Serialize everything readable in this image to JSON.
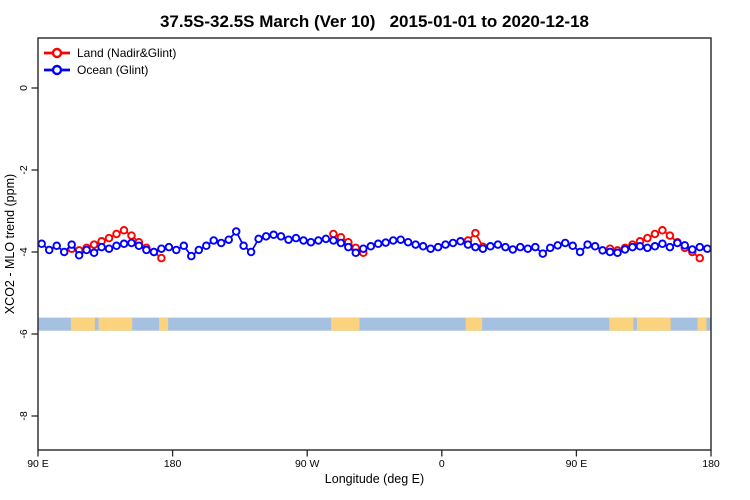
{
  "page": {
    "background": "#ffffff"
  },
  "legend": {
    "position": "top-left-inside",
    "items": [
      {
        "label": "Land (Nadir&Glint)",
        "color": "#ff0000",
        "marker": "open-circle-on-line"
      },
      {
        "label": "Ocean (Glint)",
        "color": "#0000ff",
        "marker": "open-circle-on-line"
      }
    ]
  },
  "chart_data": {
    "type": "line",
    "title": "37.5S-32.5S March (Ver 10)   2015-01-01 to 2020-12-18",
    "xlabel": "Longitude (deg E)",
    "ylabel": "XCO2 - MLO trend (ppm)",
    "xlim": [
      90,
      540
    ],
    "ylim": [
      -8.8,
      1.2
    ],
    "grid": false,
    "frame": true,
    "legend_position": "top-left-inside",
    "xticks": [
      {
        "value": 90,
        "label": "90 E"
      },
      {
        "value": 180,
        "label": "180"
      },
      {
        "value": 270,
        "label": "90 W"
      },
      {
        "value": 360,
        "label": "0"
      },
      {
        "value": 450,
        "label": "90 E"
      },
      {
        "value": 540,
        "label": "180"
      }
    ],
    "yticks": [
      {
        "value": 0,
        "label": "0"
      },
      {
        "value": -2,
        "label": "-2"
      },
      {
        "value": -4,
        "label": "-4"
      },
      {
        "value": -6,
        "label": "-6"
      },
      {
        "value": -8,
        "label": "-8"
      }
    ],
    "series": [
      {
        "name": "Land (Nadir&Glint)",
        "color": "#ff0000",
        "marker": "open-circle",
        "segments": [
          {
            "x": [
              112.5,
              117.5,
              122.5,
              127.5,
              132.5,
              137.5,
              142.5,
              147.5,
              152.5,
              157.5,
              162.5,
              167.5,
              172.5
            ],
            "y": [
              -3.92,
              -3.96,
              -3.9,
              -3.82,
              -3.74,
              -3.66,
              -3.56,
              -3.47,
              -3.6,
              -3.76,
              -3.9,
              -4.0,
              -4.15
            ]
          },
          {
            "x": [
              287.5,
              292.5,
              297.5,
              302.5,
              307.5
            ],
            "y": [
              -3.56,
              -3.64,
              -3.76,
              -3.9,
              -4.02
            ]
          },
          {
            "x": [
              377.5,
              382.5,
              387.5
            ],
            "y": [
              -3.72,
              -3.54,
              -3.87
            ]
          },
          {
            "x": [
              472.5,
              477.5,
              482.5,
              487.5,
              492.5,
              497.5,
              502.5,
              507.5,
              512.5,
              517.5,
              522.5,
              527.5,
              532.5
            ],
            "y": [
              -3.92,
              -3.96,
              -3.9,
              -3.82,
              -3.74,
              -3.66,
              -3.56,
              -3.47,
              -3.6,
              -3.76,
              -3.9,
              -4.0,
              -4.15
            ]
          }
        ]
      },
      {
        "name": "Ocean (Glint)",
        "color": "#0000ff",
        "marker": "open-circle",
        "x": [
          92.5,
          97.5,
          102.5,
          107.5,
          112.5,
          117.5,
          122.5,
          127.5,
          132.5,
          137.5,
          142.5,
          147.5,
          152.5,
          157.5,
          162.5,
          167.5,
          172.5,
          177.5,
          182.5,
          187.5,
          192.5,
          197.5,
          202.5,
          207.5,
          212.5,
          217.5,
          222.5,
          227.5,
          232.5,
          237.5,
          242.5,
          247.5,
          252.5,
          257.5,
          262.5,
          267.5,
          272.5,
          277.5,
          282.5,
          287.5,
          292.5,
          297.5,
          302.5,
          307.5,
          312.5,
          317.5,
          322.5,
          327.5,
          332.5,
          337.5,
          342.5,
          347.5,
          352.5,
          357.5,
          362.5,
          367.5,
          372.5,
          377.5,
          382.5,
          387.5,
          392.5,
          397.5,
          402.5,
          407.5,
          412.5,
          417.5,
          422.5,
          427.5,
          432.5,
          437.5,
          442.5,
          447.5,
          452.5,
          457.5,
          462.5,
          467.5,
          472.5,
          477.5,
          482.5,
          487.5,
          492.5,
          497.5,
          502.5,
          507.5,
          512.5,
          517.5,
          522.5,
          527.5,
          532.5,
          537.5
        ],
        "y": [
          -3.8,
          -3.95,
          -3.85,
          -4.0,
          -3.82,
          -4.08,
          -3.95,
          -4.02,
          -3.88,
          -3.92,
          -3.85,
          -3.8,
          -3.78,
          -3.85,
          -3.95,
          -4.0,
          -3.92,
          -3.88,
          -3.95,
          -3.85,
          -4.1,
          -3.95,
          -3.85,
          -3.72,
          -3.78,
          -3.7,
          -3.5,
          -3.85,
          -4.0,
          -3.68,
          -3.62,
          -3.58,
          -3.62,
          -3.7,
          -3.66,
          -3.72,
          -3.76,
          -3.72,
          -3.68,
          -3.72,
          -3.78,
          -3.88,
          -4.02,
          -3.92,
          -3.86,
          -3.8,
          -3.77,
          -3.72,
          -3.7,
          -3.76,
          -3.82,
          -3.86,
          -3.92,
          -3.88,
          -3.82,
          -3.78,
          -3.74,
          -3.82,
          -3.88,
          -3.92,
          -3.86,
          -3.82,
          -3.88,
          -3.94,
          -3.88,
          -3.92,
          -3.88,
          -4.04,
          -3.9,
          -3.84,
          -3.78,
          -3.85,
          -4.0,
          -3.82,
          -3.86,
          -3.96,
          -4.0,
          -4.02,
          -3.94,
          -3.88,
          -3.86,
          -3.9,
          -3.86,
          -3.8,
          -3.88,
          -3.78,
          -3.84,
          -3.94,
          -3.88,
          -3.92
        ]
      }
    ],
    "land_ocean_strip": {
      "description": "ocean/land mask strip along latitude band",
      "x_range": [
        90,
        540
      ],
      "y_range": [
        -5.6,
        -5.92
      ],
      "ocean_color": "#a6c0e2",
      "land_color": "#fbd37e",
      "land_patches": [
        [
          112,
          128
        ],
        [
          130.5,
          153
        ],
        [
          171,
          177
        ],
        [
          286,
          305
        ],
        [
          376,
          387
        ],
        [
          472,
          488
        ],
        [
          490.5,
          513
        ],
        [
          531,
          537
        ]
      ]
    }
  }
}
